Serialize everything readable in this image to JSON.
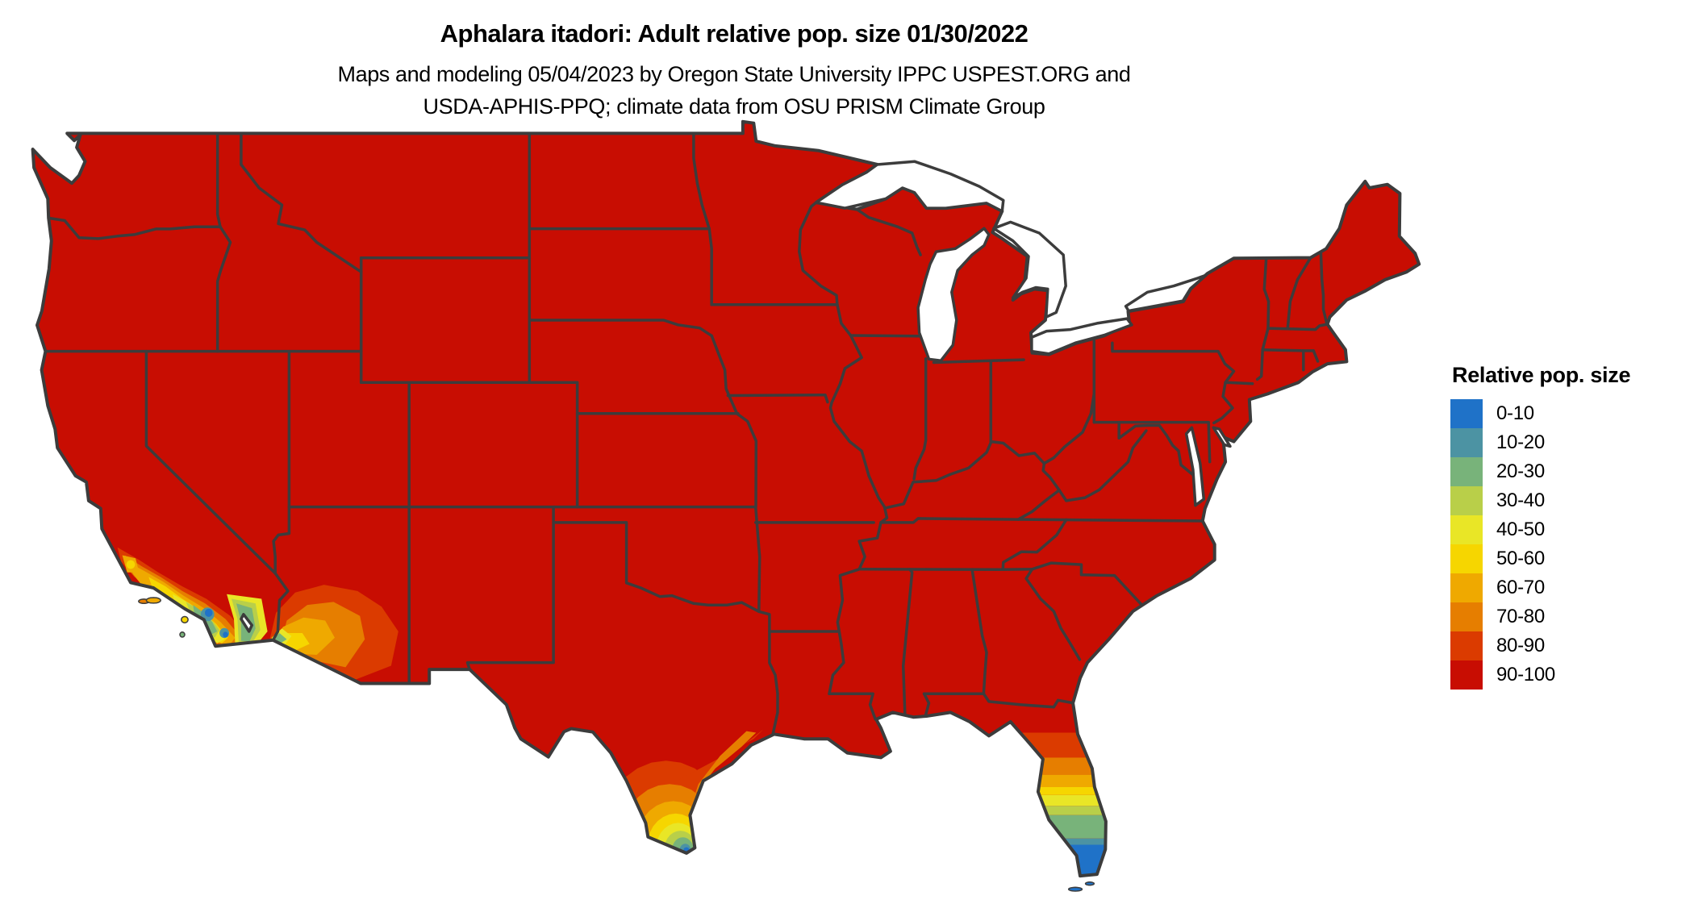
{
  "title": "Aphalara itadori: Adult relative pop. size 01/30/2022",
  "subtitle": {
    "line1": "Maps and modeling 05/04/2023 by Oregon State University IPPC USPEST.ORG and",
    "line2": "USDA-APHIS-PPQ; climate data from OSU PRISM Climate Group"
  },
  "legend": {
    "title": "Relative pop. size",
    "items": [
      {
        "label": "0-10",
        "color": "#1F72C8"
      },
      {
        "label": "10-20",
        "color": "#4C93A3"
      },
      {
        "label": "20-30",
        "color": "#78B37A"
      },
      {
        "label": "30-40",
        "color": "#B9CF49"
      },
      {
        "label": "40-50",
        "color": "#E9E626"
      },
      {
        "label": "50-60",
        "color": "#F6D600"
      },
      {
        "label": "60-70",
        "color": "#EFA900"
      },
      {
        "label": "70-80",
        "color": "#E67E00"
      },
      {
        "label": "80-90",
        "color": "#DB3B00"
      },
      {
        "label": "90-100",
        "color": "#C80D02"
      }
    ]
  },
  "map": {
    "border_color": "#3C3C3C",
    "water_color": "#FFFFFF",
    "background_color": "#FFFFFF",
    "dominant_class": "90-100",
    "low_population_regions": [
      "coastal southern California",
      "southwestern Arizona and Salton trough",
      "southern tip of Texas",
      "central and southern Florida peninsula"
    ]
  }
}
